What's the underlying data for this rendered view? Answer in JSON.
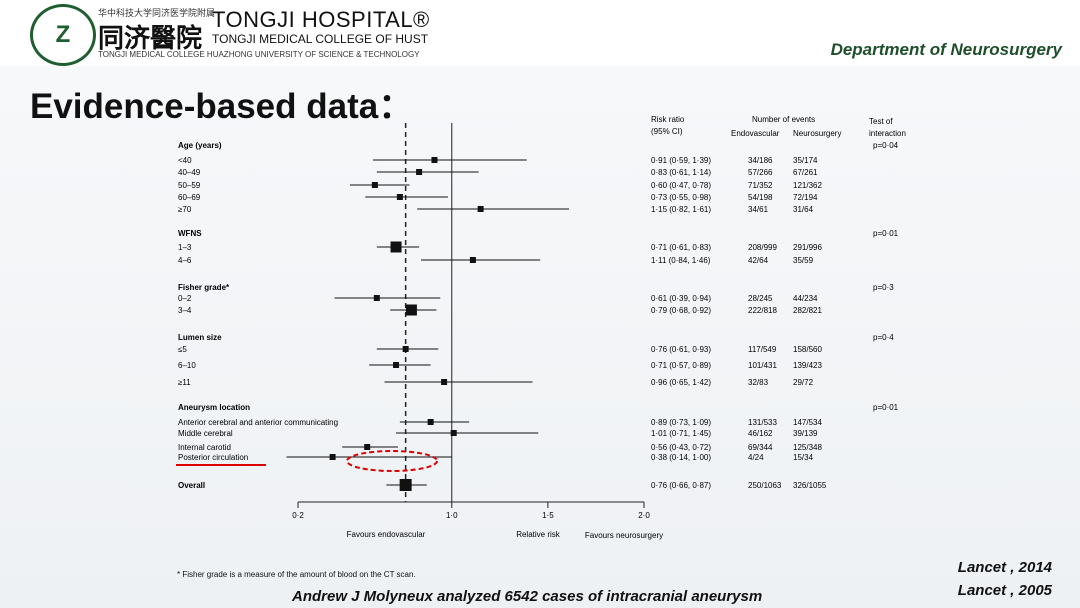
{
  "header": {
    "logo": "Z",
    "line1": "华中科技大学同济医学院附属",
    "line2": "同济醫院",
    "line3": "TONGJI HOSPITAL®",
    "line4": "TONGJI MEDICAL COLLEGE OF HUST",
    "line5": "TONGJI MEDICAL COLLEGE HUAZHONG UNIVERSITY OF SCIENCE & TECHNOLOGY",
    "department": "Department of Neurosurgery"
  },
  "title": "Evidence-based data：",
  "chart_data": {
    "type": "forest",
    "xlim": [
      0.2,
      2.0
    ],
    "x_ticks": [
      "0·2",
      "1·0",
      "1·5",
      "2·0"
    ],
    "headers": [
      "Risk ratio (95% CI)",
      "Number of events",
      "Endovascular",
      "Neurosurgery",
      "Test of interaction"
    ],
    "rows": [
      {
        "label": "Age (years)",
        "group": true,
        "test": "p=0·04"
      },
      {
        "label": "<40",
        "rr": 0.91,
        "ci": "0·91 (0·59, 1·39)",
        "e": "34/186",
        "n": "35/174"
      },
      {
        "label": "40–49",
        "rr": 0.83,
        "ci": "0·83 (0·61, 1·14)",
        "e": "57/266",
        "n": "67/261"
      },
      {
        "label": "50–59",
        "rr": 0.6,
        "ci": "0·60 (0·47, 0·78)",
        "e": "71/352",
        "n": "121/362"
      },
      {
        "label": "60–69",
        "rr": 0.73,
        "ci": "0·73 (0·55, 0·98)",
        "e": "54/198",
        "n": "72/194"
      },
      {
        "label": "≥70",
        "rr": 1.15,
        "ci": "1·15 (0·82, 1·61)",
        "e": "34/61",
        "n": "31/64"
      },
      {
        "label": "WFNS",
        "group": true,
        "test": "p=0·01"
      },
      {
        "label": "1–3",
        "rr": 0.71,
        "ci": "0·71 (0·61, 0·83)",
        "e": "208/999",
        "n": "291/996"
      },
      {
        "label": "4–6",
        "rr": 1.11,
        "ci": "1·11 (0·84, 1·46)",
        "e": "42/64",
        "n": "35/59"
      },
      {
        "label": "Fisher grade*",
        "group": true,
        "test": "p=0·3"
      },
      {
        "label": "0–2",
        "rr": 0.61,
        "ci": "0·61 (0·39, 0·94)",
        "e": "28/245",
        "n": "44/234"
      },
      {
        "label": "3–4",
        "rr": 0.79,
        "ci": "0·79 (0·68, 0·92)",
        "e": "222/818",
        "n": "282/821"
      },
      {
        "label": "Lumen size",
        "group": true,
        "test": "p=0·4"
      },
      {
        "label": "≤5",
        "rr": 0.76,
        "ci": "0·76 (0·61, 0·93)",
        "e": "117/549",
        "n": "158/560"
      },
      {
        "label": "6–10",
        "rr": 0.71,
        "ci": "0·71 (0·57, 0·89)",
        "e": "101/431",
        "n": "139/423"
      },
      {
        "label": "≥11",
        "rr": 0.96,
        "ci": "0·96 (0·65, 1·42)",
        "e": "32/83",
        "n": "29/72"
      },
      {
        "label": "Aneurysm location",
        "group": true,
        "test": "p=0·01"
      },
      {
        "label": "Anterior cerebral and anterior communicating",
        "rr": 0.89,
        "ci": "0·89 (0·73, 1·09)",
        "e": "131/533",
        "n": "147/534"
      },
      {
        "label": "Middle cerebral",
        "rr": 1.01,
        "ci": "1·01 (0·71, 1·45)",
        "e": "46/162",
        "n": "39/139"
      },
      {
        "label": "Internal carotid",
        "rr": 0.56,
        "ci": "0·56 (0·43, 0·72)",
        "e": "69/344",
        "n": "125/348"
      },
      {
        "label": "Posterior circulation",
        "rr": 0.38,
        "ci": "0·38 (0·14, 1·00)",
        "e": "4/24",
        "n": "15/34"
      },
      {
        "label": "Overall",
        "rr": 0.76,
        "ci": "0·76 (0·66, 0·87)",
        "e": "250/1063",
        "n": "326/1055"
      }
    ],
    "axis_labels": [
      "Favours endovascular",
      "Relative risk",
      "Favours neurosurgery"
    ]
  },
  "footnote": "* Fisher grade is a measure of the amount of blood on the CT scan.",
  "caption": "Andrew J Molyneux analyzed 6542 cases of intracranial aneurysm",
  "refs": [
    "Lancet , 2014",
    "Lancet , 2005"
  ]
}
